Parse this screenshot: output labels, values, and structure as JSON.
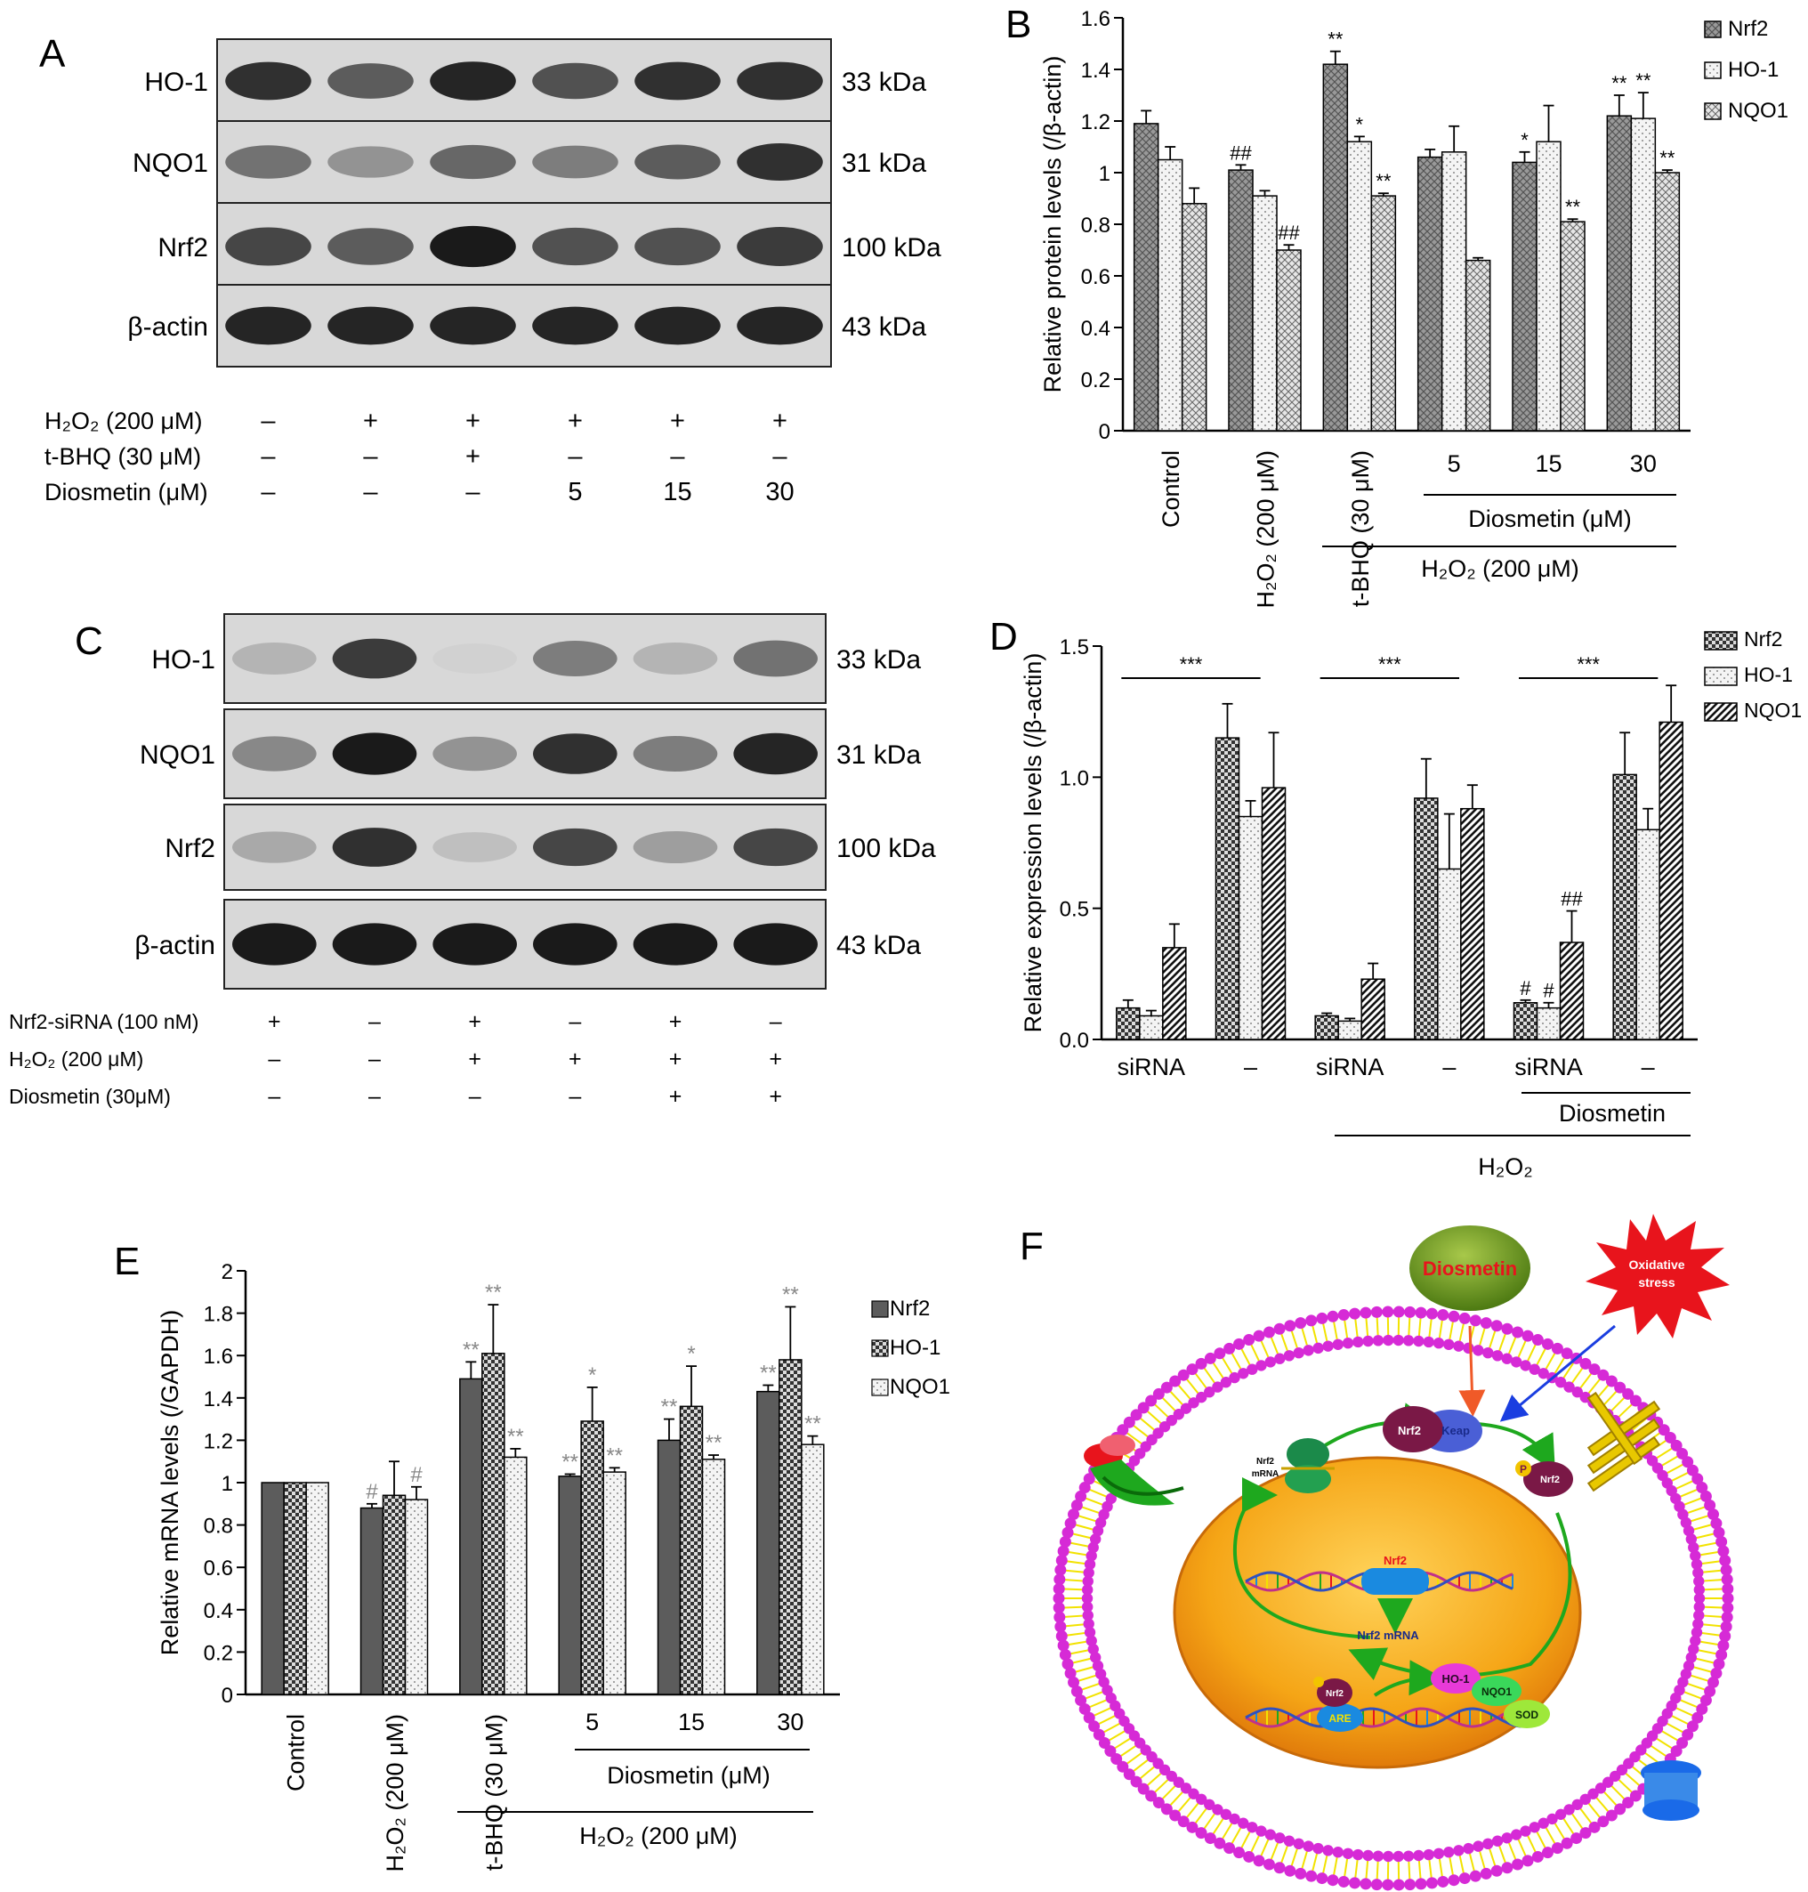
{
  "panels": {
    "a": {
      "letter": "A",
      "bands": [
        {
          "label": "HO-1",
          "kda": "33 kDa",
          "intensity": [
            0.85,
            0.65,
            0.9,
            0.7,
            0.85,
            0.85
          ]
        },
        {
          "label": "NQO1",
          "kda": "31 kDa",
          "intensity": [
            0.55,
            0.4,
            0.6,
            0.5,
            0.65,
            0.85
          ]
        },
        {
          "label": "Nrf2",
          "kda": "100 kDa",
          "intensity": [
            0.75,
            0.65,
            0.95,
            0.7,
            0.7,
            0.8
          ]
        },
        {
          "label": "β-actin",
          "kda": "43 kDa",
          "intensity": [
            0.9,
            0.9,
            0.9,
            0.9,
            0.9,
            0.9
          ]
        }
      ],
      "treatments": [
        {
          "label": "H₂O₂ (200 μM)",
          "marks": [
            "–",
            "+",
            "+",
            "+",
            "+",
            "+"
          ]
        },
        {
          "label": "t-BHQ (30 μM)",
          "marks": [
            "–",
            "–",
            "+",
            "–",
            "–",
            "–"
          ]
        },
        {
          "label": "Diosmetin (μM)",
          "marks": [
            "–",
            "–",
            "–",
            "5",
            "15",
            "30"
          ]
        }
      ]
    },
    "b": {
      "letter": "B",
      "chart_data": {
        "type": "bar",
        "ylabel": "Relative protein levels (/β-actin)",
        "ylim": [
          0,
          1.6
        ],
        "yticks": [
          "0",
          "0.2",
          "0.4",
          "0.6",
          "0.8",
          "1",
          "1.2",
          "1.4",
          "1.6"
        ],
        "categories": [
          "Control",
          "H₂O₂ (200 μM)",
          "t-BHQ (30 μM)",
          "5",
          "15",
          "30"
        ],
        "series": [
          {
            "name": "Nrf2",
            "values": [
              1.19,
              1.01,
              1.42,
              1.06,
              1.04,
              1.22
            ],
            "errors": [
              0.05,
              0.02,
              0.05,
              0.03,
              0.04,
              0.08
            ]
          },
          {
            "name": "HO-1",
            "values": [
              1.05,
              0.91,
              1.12,
              1.08,
              1.12,
              1.21
            ],
            "errors": [
              0.05,
              0.02,
              0.02,
              0.1,
              0.14,
              0.1
            ]
          },
          {
            "name": "NQO1",
            "values": [
              0.88,
              0.7,
              0.91,
              0.66,
              0.81,
              1.0
            ],
            "errors": [
              0.06,
              0.02,
              0.01,
              0.01,
              0.01,
              0.01
            ]
          }
        ],
        "annotations": [
          [
            "",
            "",
            ""
          ],
          [
            "##",
            "",
            "##"
          ],
          [
            "**",
            "*",
            "**"
          ],
          [
            "",
            "",
            ""
          ],
          [
            "*",
            "",
            "**"
          ],
          [
            "**",
            "**",
            "**"
          ]
        ],
        "group_labels": {
          "diosmetin": "Diosmetin (μM)",
          "h2o2": "H₂O₂ (200 μM)"
        },
        "legend_position": "top-right"
      }
    },
    "c": {
      "letter": "C",
      "bands": [
        {
          "label": "HO-1",
          "kda": "33 kDa",
          "intensity": [
            0.25,
            0.8,
            0.12,
            0.5,
            0.25,
            0.55
          ]
        },
        {
          "label": "NQO1",
          "kda": "31 kDa",
          "intensity": [
            0.45,
            0.95,
            0.4,
            0.85,
            0.5,
            0.9
          ]
        },
        {
          "label": "Nrf2",
          "kda": "100 kDa",
          "intensity": [
            0.3,
            0.85,
            0.2,
            0.75,
            0.35,
            0.75
          ]
        },
        {
          "label": "β-actin",
          "kda": "43 kDa",
          "intensity": [
            0.95,
            0.95,
            0.95,
            0.95,
            0.95,
            0.95
          ]
        }
      ],
      "treatments": [
        {
          "label": "Nrf2-siRNA (100 nM)",
          "marks": [
            "+",
            "–",
            "+",
            "–",
            "+",
            "–"
          ]
        },
        {
          "label": "H₂O₂ (200 μM)",
          "marks": [
            "–",
            "–",
            "+",
            "+",
            "+",
            "+"
          ]
        },
        {
          "label": "Diosmetin (30μM)",
          "marks": [
            "–",
            "–",
            "–",
            "–",
            "+",
            "+"
          ]
        }
      ]
    },
    "d": {
      "letter": "D",
      "chart_data": {
        "type": "bar",
        "ylabel": "Relative expression levels (/β-actin)",
        "ylim": [
          0,
          1.5
        ],
        "yticks": [
          "0.0",
          "0.5",
          "1.0",
          "1.5"
        ],
        "categories": [
          "siRNA",
          "–",
          "siRNA",
          "–",
          "siRNA",
          "–"
        ],
        "series": [
          {
            "name": "Nrf2",
            "values": [
              0.12,
              1.15,
              0.09,
              0.92,
              0.14,
              1.01
            ],
            "errors": [
              0.03,
              0.13,
              0.01,
              0.15,
              0.01,
              0.16
            ]
          },
          {
            "name": "HO-1",
            "values": [
              0.09,
              0.85,
              0.07,
              0.65,
              0.12,
              0.8
            ],
            "errors": [
              0.02,
              0.06,
              0.01,
              0.21,
              0.02,
              0.08
            ]
          },
          {
            "name": "NQO1",
            "values": [
              0.35,
              0.96,
              0.23,
              0.88,
              0.37,
              1.21
            ],
            "errors": [
              0.09,
              0.21,
              0.06,
              0.09,
              0.12,
              0.14
            ]
          }
        ],
        "annotations": [
          [
            "",
            "",
            ""
          ],
          [
            "",
            "",
            ""
          ],
          [
            "",
            "",
            ""
          ],
          [
            "",
            "",
            ""
          ],
          [
            "#",
            "#",
            "##"
          ],
          [
            "",
            "",
            ""
          ]
        ],
        "significance": [
          "***",
          "***",
          "***"
        ],
        "group_labels": {
          "diosmetin": "Diosmetin",
          "h2o2": "H₂O₂"
        },
        "legend_position": "top-right"
      }
    },
    "e": {
      "letter": "E",
      "chart_data": {
        "type": "bar",
        "ylabel": "Relative mRNA levels (/GAPDH)",
        "ylim": [
          0,
          2
        ],
        "yticks": [
          "0",
          "0.2",
          "0.4",
          "0.6",
          "0.8",
          "1",
          "1.2",
          "1.4",
          "1.6",
          "1.8",
          "2"
        ],
        "categories": [
          "Control",
          "H₂O₂ (200 μM)",
          "t-BHQ (30 μM)",
          "5",
          "15",
          "30"
        ],
        "series": [
          {
            "name": "Nrf2",
            "values": [
              1.0,
              0.88,
              1.49,
              1.03,
              1.2,
              1.43
            ],
            "errors": [
              0,
              0.02,
              0.08,
              0.01,
              0.1,
              0.03
            ]
          },
          {
            "name": "HO-1",
            "values": [
              1.0,
              0.94,
              1.61,
              1.29,
              1.36,
              1.58
            ],
            "errors": [
              0,
              0.16,
              0.23,
              0.16,
              0.19,
              0.25
            ]
          },
          {
            "name": "NQO1",
            "values": [
              1.0,
              0.92,
              1.12,
              1.05,
              1.11,
              1.18
            ],
            "errors": [
              0,
              0.06,
              0.04,
              0.02,
              0.02,
              0.04
            ]
          }
        ],
        "annotations": [
          [
            "",
            "",
            ""
          ],
          [
            "#",
            "",
            "#"
          ],
          [
            "**",
            "**",
            "**"
          ],
          [
            "**",
            "*",
            "**"
          ],
          [
            "**",
            "*",
            "**"
          ],
          [
            "**",
            "**",
            "**"
          ]
        ],
        "group_labels": {
          "diosmetin": "Diosmetin (μM)",
          "h2o2": "H₂O₂ (200 μM)"
        },
        "legend_position": "top-right"
      }
    },
    "f": {
      "letter": "F",
      "labels": {
        "diosmetin": "Diosmetin",
        "oxidative": "Oxidative",
        "stress": "stress",
        "nrf2": "Nrf2",
        "keap": "Keap",
        "p": "P",
        "mrna_a": "Nrf2",
        "mrna_b": "mRNA",
        "nuclear_mrna": "Nrf2  mRNA",
        "are": "ARE",
        "ho1": "HO-1",
        "nqo1": "NQO1",
        "sod": "SOD"
      },
      "colors": {
        "membrane_head": "#d62ad6",
        "membrane_tail": "#f2e200",
        "nucleus": "#f59a12",
        "diosmetin_ball": "#6e9e1f",
        "stress_burst": "#e8141c",
        "nrf2_protein": "#7a1846",
        "cycle_arrow": "#1ea81e"
      }
    }
  }
}
